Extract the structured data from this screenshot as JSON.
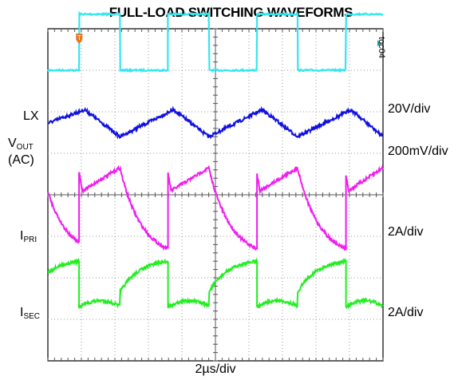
{
  "chart_data": {
    "type": "line",
    "title": "FULL-LOAD SWITCHING WAVEFORMS",
    "figure_id": "toc04",
    "xlabel": "2µs/div",
    "x_divisions": 10,
    "y_divisions": 8,
    "grid": true,
    "x_unit": "div",
    "switching_period_div": 2.65,
    "channels": [
      {
        "name": "LX",
        "scale": "20V/div",
        "color": "#33e6f0",
        "shape": "square",
        "low_level_div": 7.0,
        "high_level_div": 8.35,
        "edges_div": [
          0.93,
          2.15,
          3.58,
          4.8,
          6.23,
          7.45,
          8.88,
          10.0
        ]
      },
      {
        "name": "VOUT (AC)",
        "name_main": "V",
        "name_sub": "OUT",
        "name_line2": "(AC)",
        "scale": "200mV/div",
        "color": "#1010e0",
        "shape": "triangle",
        "min_div": 5.4,
        "max_div": 6.05,
        "peaks_div": [
          0.0,
          1.1,
          3.75,
          6.4,
          9.05
        ],
        "troughs_div": [
          0.0,
          2.15,
          4.8,
          7.45,
          10.0
        ]
      },
      {
        "name": "IPRI",
        "name_main": "I",
        "name_sub": "PRI",
        "scale": "2A/div",
        "color": "#f01ef0",
        "shape": "ramp",
        "min_div": 2.7,
        "max_div": 4.65
      },
      {
        "name": "ISEC",
        "name_main": "I",
        "name_sub": "SEC",
        "scale": "2A/div",
        "color": "#22ee22",
        "shape": "ramp",
        "min_div": 1.3,
        "max_div": 2.4
      }
    ]
  }
}
